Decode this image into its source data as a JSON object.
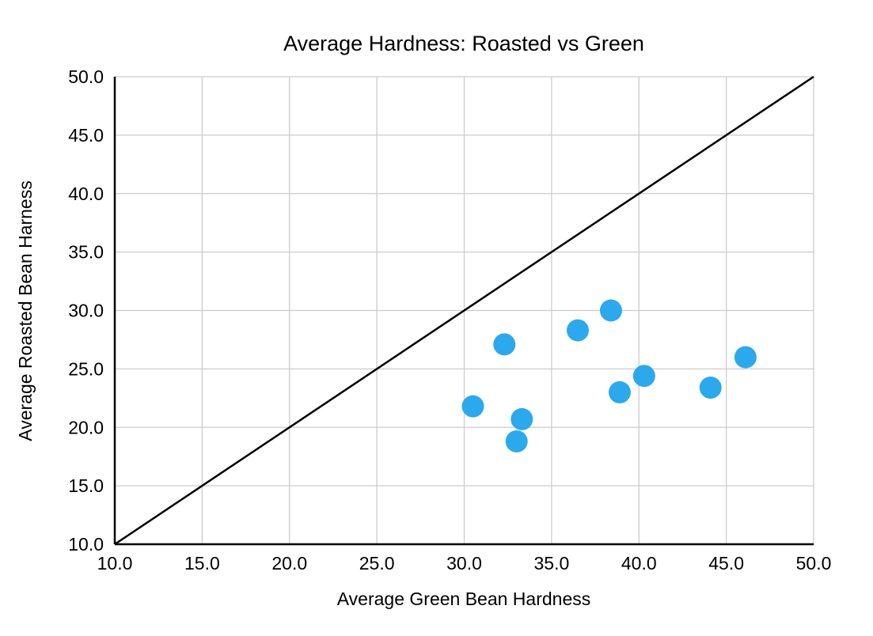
{
  "chart_data": {
    "type": "scatter",
    "title": "Average Hardness: Roasted vs Green",
    "xlabel": "Average Green Bean Hardness",
    "ylabel": "Average Roasted Bean Harness",
    "xlim": [
      10,
      50
    ],
    "ylim": [
      10,
      50
    ],
    "xticks": [
      10,
      15,
      20,
      25,
      30,
      35,
      40,
      45,
      50
    ],
    "yticks": [
      10,
      15,
      20,
      25,
      30,
      35,
      40,
      45,
      50
    ],
    "tick_format_decimals": 1,
    "grid": true,
    "legend": "none",
    "points": [
      {
        "x": 30.5,
        "y": 21.8
      },
      {
        "x": 32.3,
        "y": 27.1
      },
      {
        "x": 33.0,
        "y": 18.8
      },
      {
        "x": 33.3,
        "y": 20.7
      },
      {
        "x": 36.5,
        "y": 28.3
      },
      {
        "x": 38.4,
        "y": 30.0
      },
      {
        "x": 38.9,
        "y": 23.0
      },
      {
        "x": 40.3,
        "y": 24.4
      },
      {
        "x": 44.1,
        "y": 23.4
      },
      {
        "x": 46.1,
        "y": 26.0
      }
    ],
    "reference_line": {
      "x1": 10,
      "y1": 10,
      "x2": 50,
      "y2": 50
    },
    "colors": {
      "point": "#2CA9EC",
      "grid": "#cccccc",
      "axis": "#000000",
      "reference_line": "#000000",
      "background": "#ffffff"
    }
  }
}
